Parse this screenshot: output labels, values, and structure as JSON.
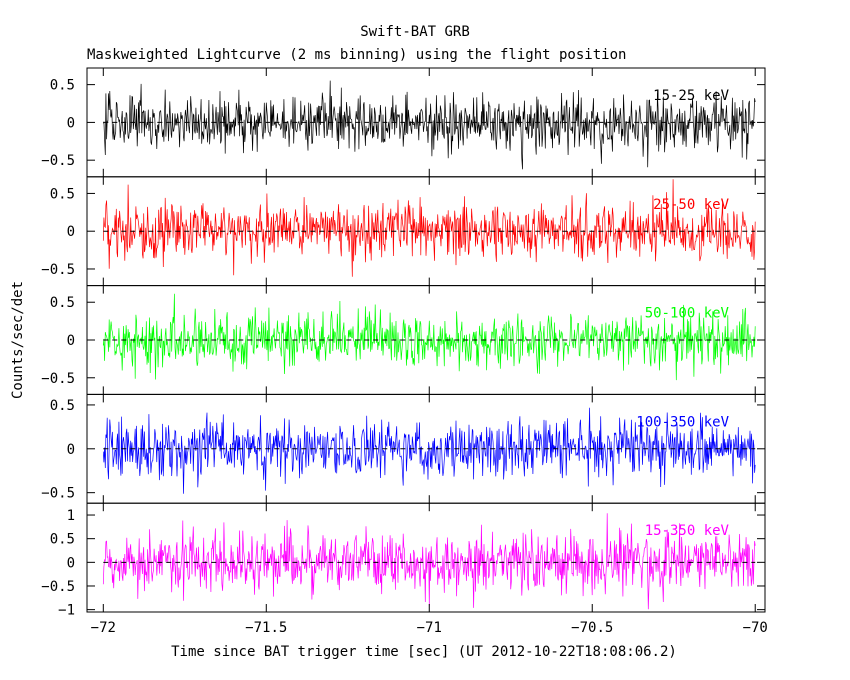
{
  "chart_data": {
    "type": "line",
    "title": "Swift-BAT GRB",
    "subtitle": "Maskweighted Lightcurve (2 ms binning) using the flight position",
    "xlabel": "Time since BAT trigger time [sec] (UT 2012-10-22T18:08:06.2)",
    "ylabel": "Counts/sec/det",
    "xlim": [
      -72.05,
      -69.97
    ],
    "x_ticks": [
      -72,
      -71.5,
      -71,
      -70.5,
      -70
    ],
    "x_tick_labels": [
      "−72",
      "−71.5",
      "−71",
      "−70.5",
      "−70"
    ],
    "data_x_range": [
      -72.0,
      -70.0
    ],
    "bin_size_sec": 0.002,
    "zero_line": "dashed",
    "panels": [
      {
        "name": "15-25 keV",
        "color": "#000000",
        "ylim": [
          -0.72,
          0.72
        ],
        "y_ticks": [
          -0.5,
          0,
          0.5
        ],
        "y_tick_labels": [
          "−0.5",
          "0",
          "0.5"
        ],
        "noise_amplitude": 0.45,
        "label_position": "top-right"
      },
      {
        "name": "25-50 keV",
        "color": "#ff0000",
        "ylim": [
          -0.72,
          0.72
        ],
        "y_ticks": [
          -0.5,
          0,
          0.5
        ],
        "y_tick_labels": [
          "−0.5",
          "0",
          "0.5"
        ],
        "noise_amplitude": 0.48,
        "label_position": "top-right"
      },
      {
        "name": "50-100 keV",
        "color": "#00ff00",
        "ylim": [
          -0.72,
          0.72
        ],
        "y_ticks": [
          -0.5,
          0,
          0.5
        ],
        "y_tick_labels": [
          "−0.5",
          "0",
          "0.5"
        ],
        "noise_amplitude": 0.42,
        "label_position": "top-right"
      },
      {
        "name": "100-350 keV",
        "color": "#0000ff",
        "ylim": [
          -0.62,
          0.62
        ],
        "y_ticks": [
          -0.5,
          0,
          0.5
        ],
        "y_tick_labels": [
          "−0.5",
          "0",
          "0.5"
        ],
        "noise_amplitude": 0.4,
        "label_position": "top-right"
      },
      {
        "name": "15-350 keV",
        "color": "#ff00ff",
        "ylim": [
          -1.05,
          1.25
        ],
        "y_ticks": [
          -1,
          -0.5,
          0,
          0.5,
          1
        ],
        "y_tick_labels": [
          "−1",
          "−0.5",
          "0",
          "0.5",
          "1"
        ],
        "noise_amplitude": 0.78,
        "label_position": "top-right"
      }
    ]
  }
}
